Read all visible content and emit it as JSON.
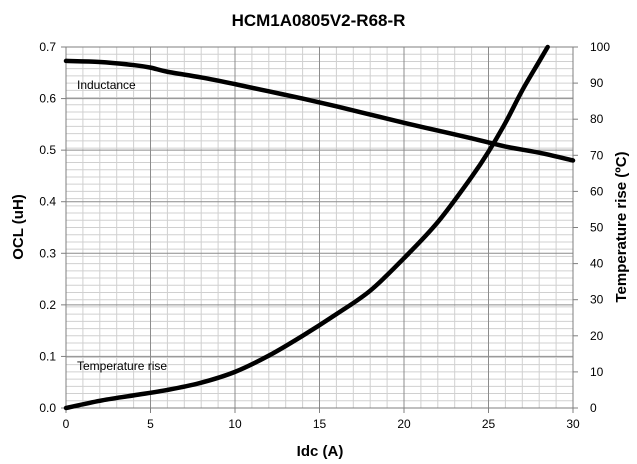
{
  "chart_data": {
    "type": "line",
    "title": "HCM1A0805V2-R68-R",
    "xlabel": "Idc (A)",
    "ylabel": "OCL (uH)",
    "y2label": "Temperature rise (ºC)",
    "xlim": [
      0,
      30
    ],
    "ylim": [
      0,
      0.7
    ],
    "y2lim": [
      0,
      100
    ],
    "x_ticks": [
      "0",
      "5",
      "10",
      "15",
      "20",
      "25",
      "30"
    ],
    "y_ticks": [
      "0.0",
      "0.1",
      "0.2",
      "0.3",
      "0.4",
      "0.5",
      "0.6",
      "0.7"
    ],
    "y2_ticks": [
      "0",
      "10",
      "20",
      "30",
      "40",
      "50",
      "60",
      "70",
      "80",
      "90",
      "100"
    ],
    "grid": true,
    "legend": "none",
    "annotations": [
      {
        "text": "Inductance",
        "series": 0
      },
      {
        "text": "Temperature rise",
        "series": 1
      }
    ],
    "series": [
      {
        "axis": "left",
        "color": "#000000",
        "x": [
          0,
          2,
          4,
          5,
          6,
          8,
          10,
          12,
          14,
          16,
          18,
          20,
          22,
          24,
          26,
          28,
          30
        ],
        "y": [
          0.673,
          0.671,
          0.665,
          0.66,
          0.652,
          0.641,
          0.628,
          0.614,
          0.6,
          0.585,
          0.569,
          0.553,
          0.538,
          0.523,
          0.507,
          0.495,
          0.48
        ]
      },
      {
        "axis": "right",
        "color": "#000000",
        "x": [
          0,
          2,
          4,
          6,
          8,
          10,
          12,
          14,
          16,
          18,
          20,
          22,
          24,
          25,
          26,
          27,
          28,
          28.5
        ],
        "y": [
          0,
          2,
          3.5,
          5,
          7,
          10,
          14.5,
          20,
          26,
          32.5,
          41.5,
          51.5,
          64,
          71,
          79,
          88,
          96,
          100
        ]
      }
    ]
  }
}
